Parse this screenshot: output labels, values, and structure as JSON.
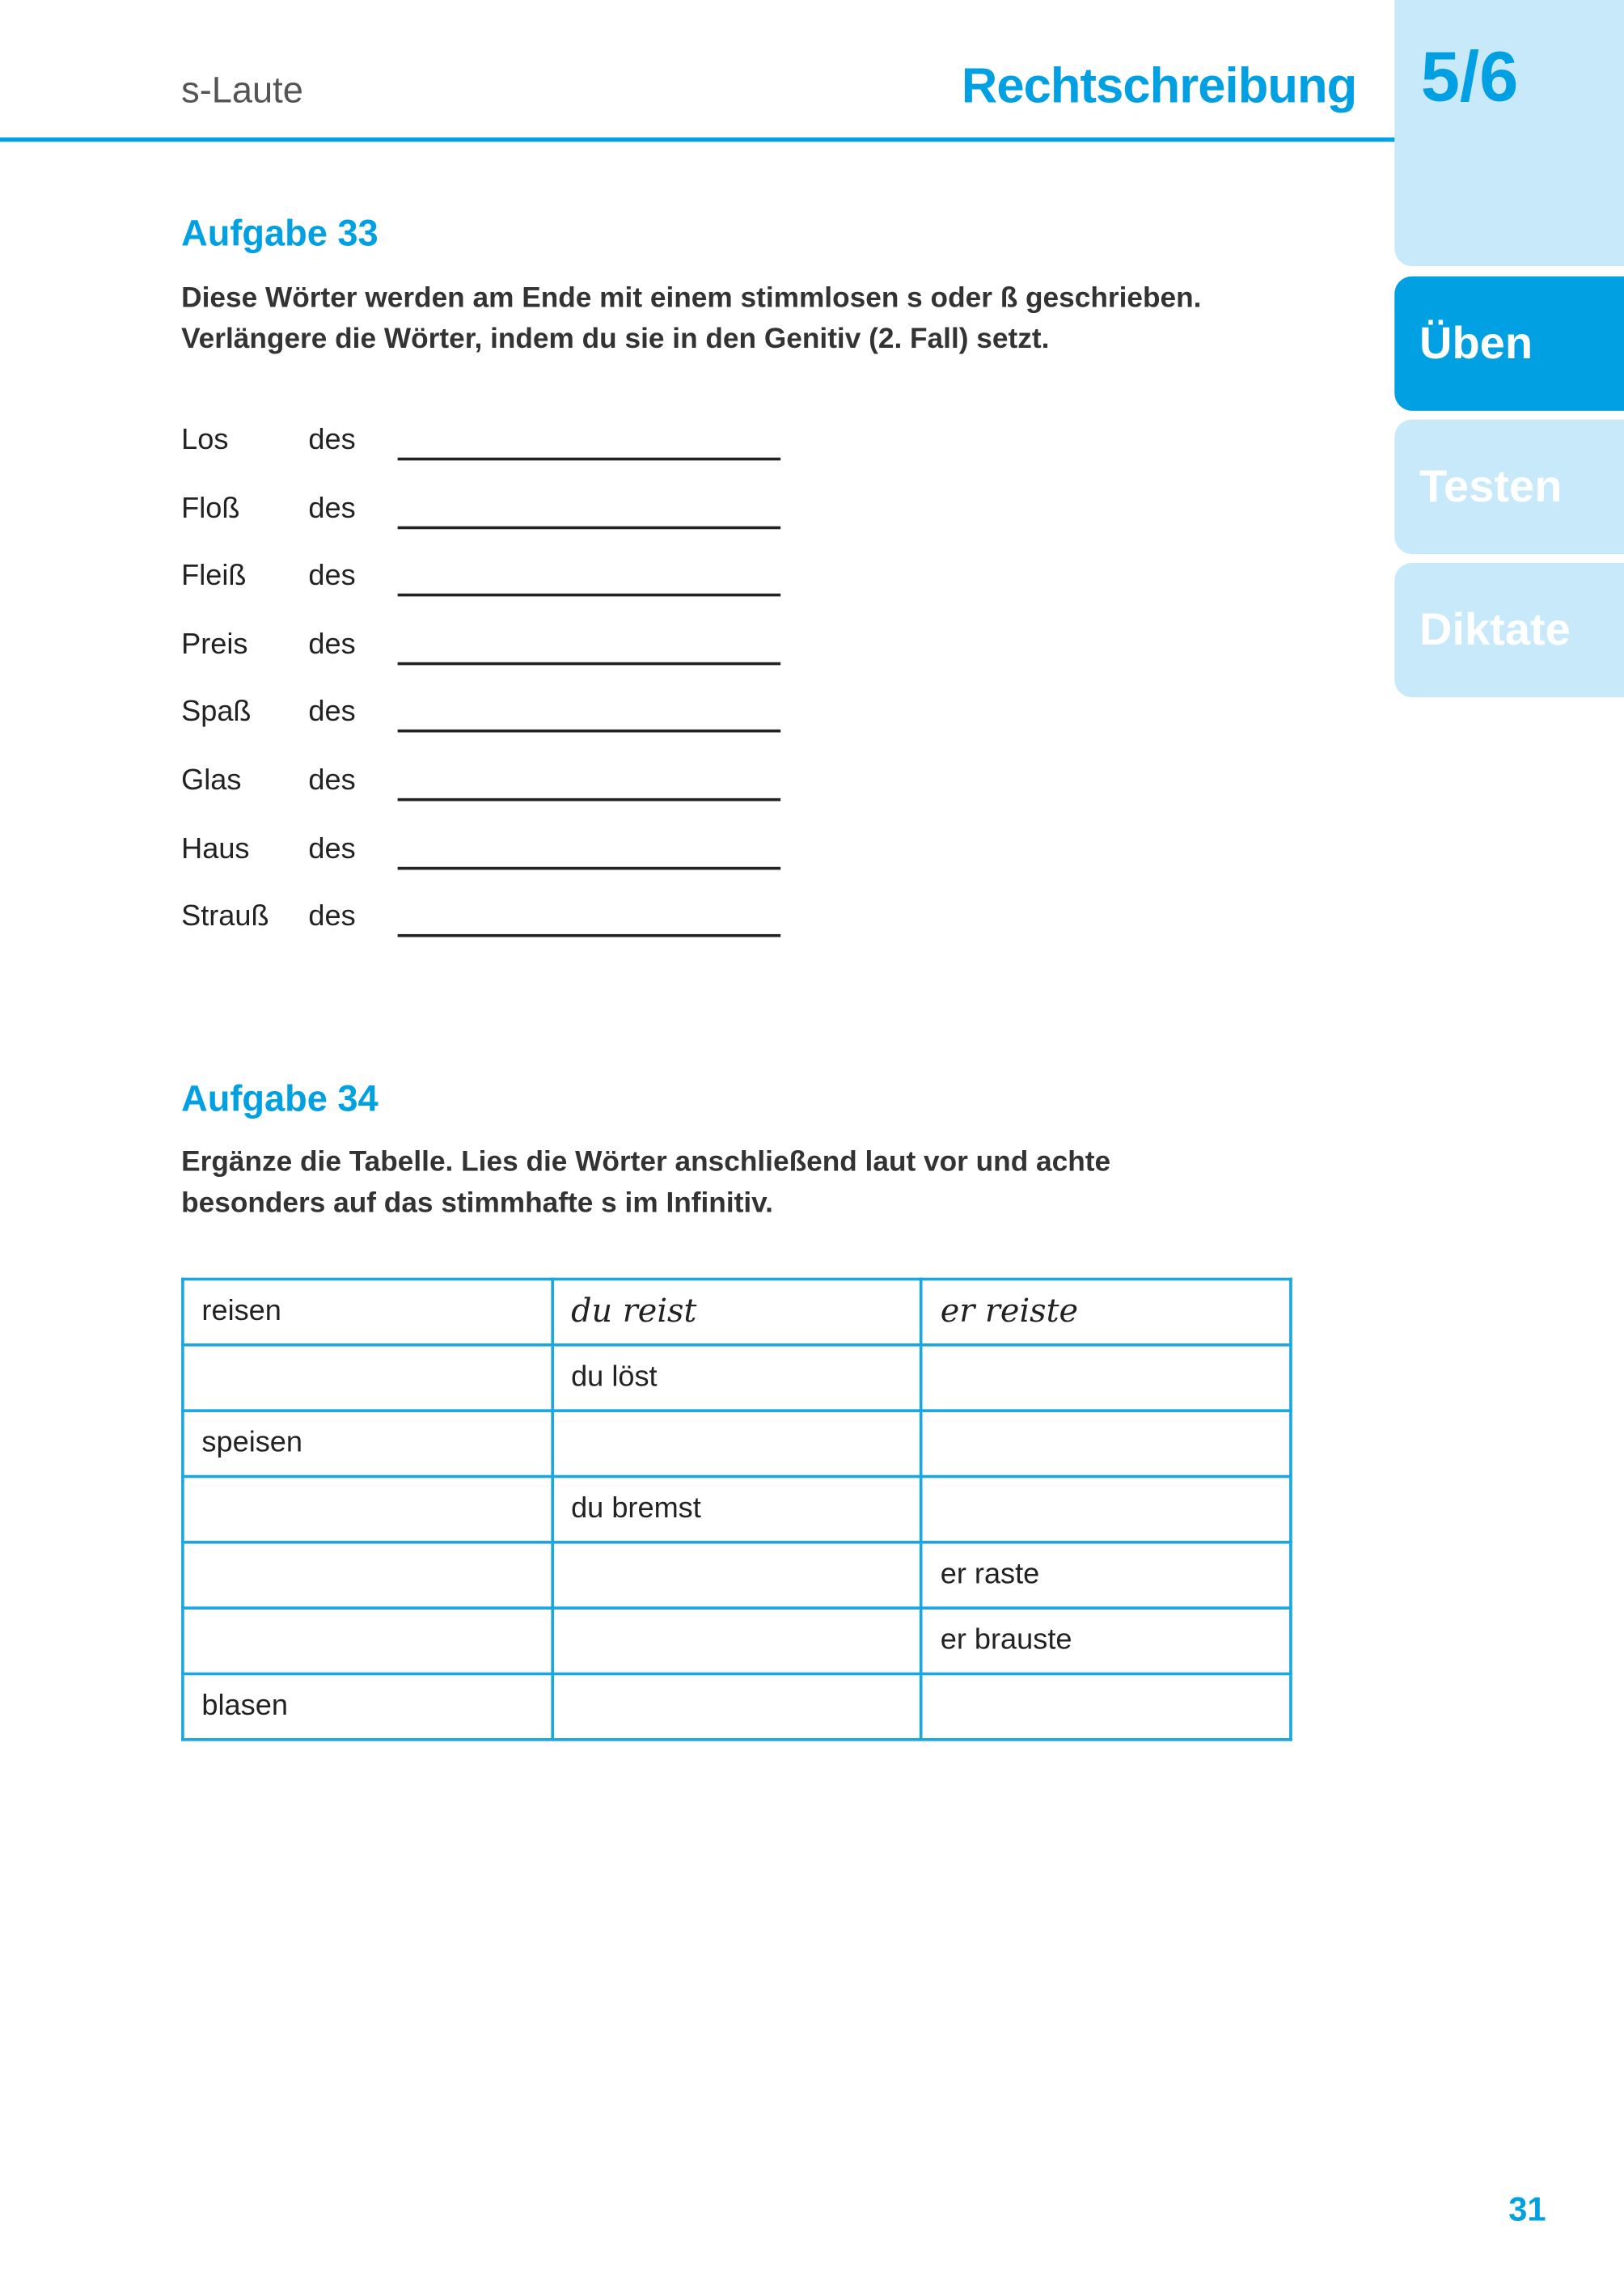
{
  "header": {
    "section": "s-Laute",
    "subject": "Rechtschreibung",
    "grade": "5/6"
  },
  "tabs": [
    {
      "label": "Üben",
      "active": true
    },
    {
      "label": "Testen",
      "active": false
    },
    {
      "label": "Diktate",
      "active": false
    }
  ],
  "colors": {
    "accent": "#00a0e3",
    "tab_light": "#c8e9fa"
  },
  "task33": {
    "title": "Aufgabe 33",
    "instructions": [
      "Diese Wörter werden am Ende mit einem stimmlosen s oder ß geschrieben.",
      "Verlängere die Wörter, indem du sie in den Genitiv (2. Fall) setzt."
    ],
    "article": "des",
    "words": [
      "Los",
      "Floß",
      "Fleiß",
      "Preis",
      "Spaß",
      "Glas",
      "Haus",
      "Strauß"
    ]
  },
  "task34": {
    "title": "Aufgabe 34",
    "instructions": [
      "Ergänze die Tabelle. Lies die Wörter anschließend laut vor und achte",
      "besonders auf das stimmhafte s im Infinitiv."
    ],
    "rows": [
      [
        "reisen",
        "du reist",
        "er reiste"
      ],
      [
        "",
        "du löst",
        ""
      ],
      [
        "speisen",
        "",
        ""
      ],
      [
        "",
        "du bremst",
        ""
      ],
      [
        "",
        "",
        "er raste"
      ],
      [
        "",
        "",
        "er brauste"
      ],
      [
        "blasen",
        "",
        ""
      ]
    ]
  },
  "page_number": "31"
}
